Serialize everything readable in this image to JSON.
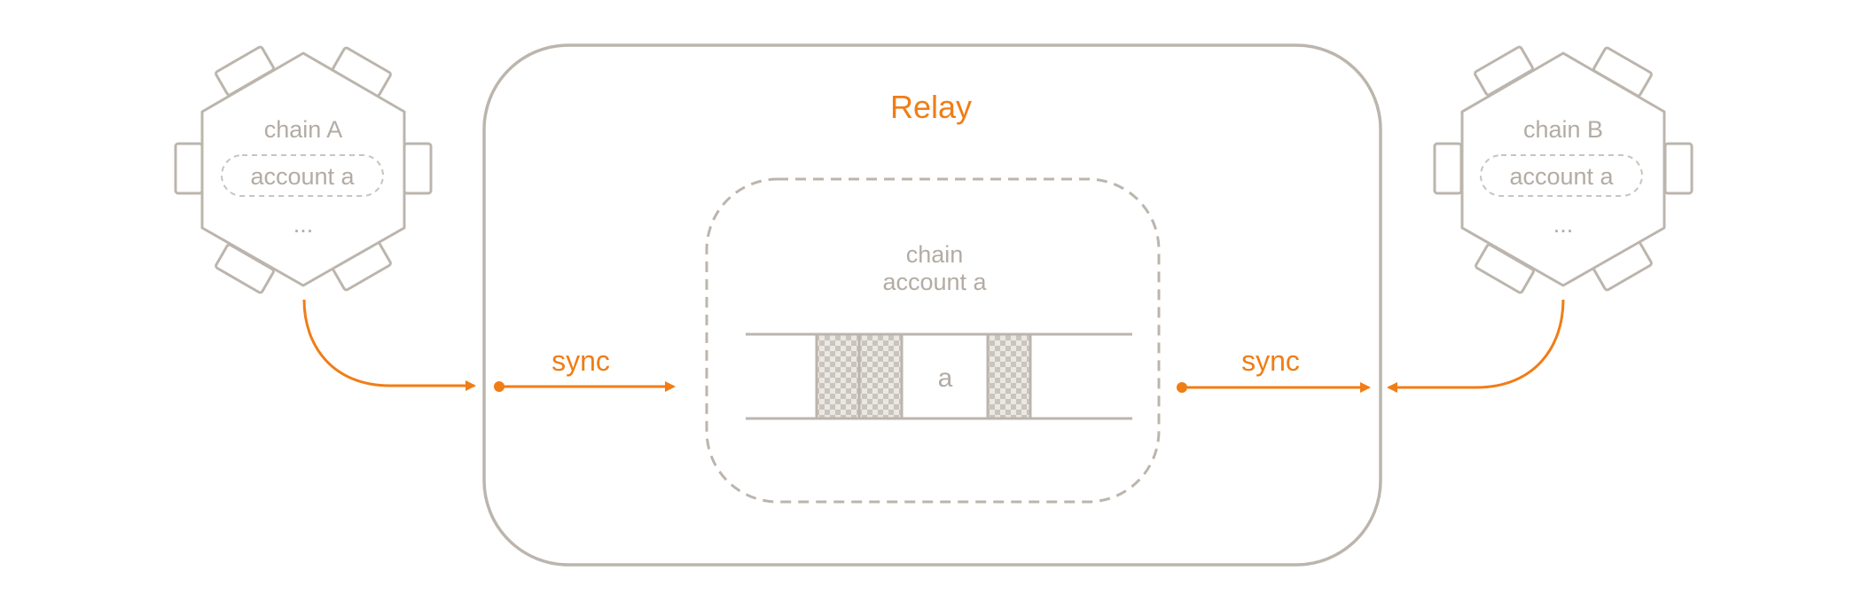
{
  "colors": {
    "outline": "#bcb5ad",
    "text_gray": "#b3aca4",
    "accent": "#f07d16",
    "checker_dark": "#c9c4bd",
    "checker_light": "#ebe8e4"
  },
  "relay": {
    "title": "Relay"
  },
  "inner_chain": {
    "line1": "chain",
    "line2": "account a",
    "cell_label": "a"
  },
  "chain_left": {
    "title": "chain A",
    "account": "account a",
    "ellipsis": "..."
  },
  "chain_right": {
    "title": "chain B",
    "account": "account a",
    "ellipsis": "..."
  },
  "sync_left": {
    "label": "sync"
  },
  "sync_right": {
    "label": "sync"
  }
}
